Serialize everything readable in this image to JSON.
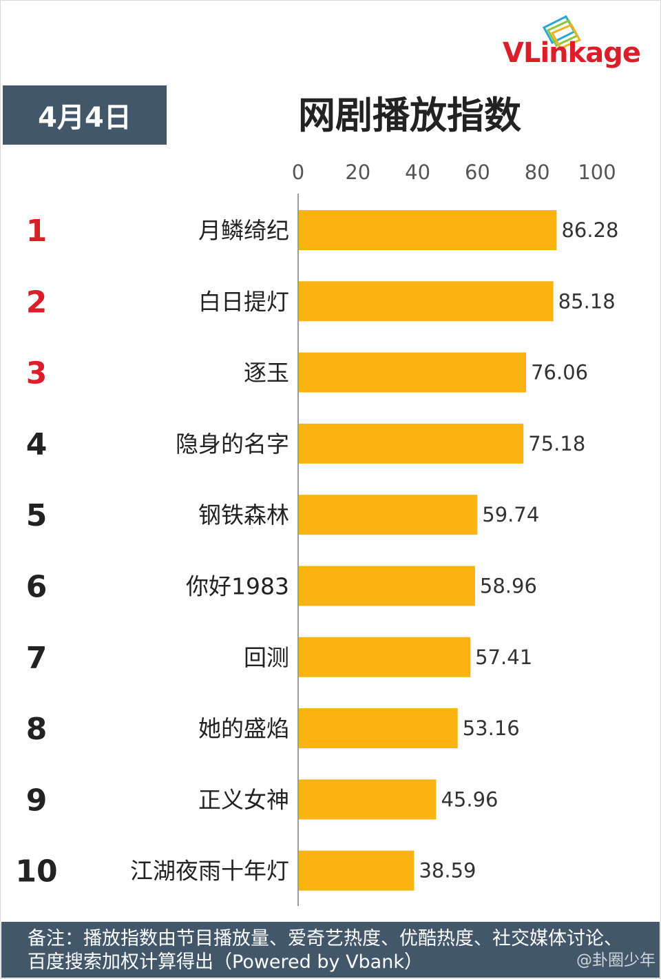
{
  "brand": {
    "logo_text": "VLinkage",
    "logo_color": "#d9202a"
  },
  "header": {
    "date": "4月4日",
    "title": "网剧播放指数"
  },
  "chart_data": {
    "type": "bar",
    "orientation": "horizontal",
    "title": "网剧播放指数",
    "xlim": [
      0,
      100
    ],
    "ticks": [
      "0",
      "20",
      "40",
      "60",
      "80",
      "100"
    ],
    "ranks": [
      "1",
      "2",
      "3",
      "4",
      "5",
      "6",
      "7",
      "8",
      "9",
      "10"
    ],
    "categories": [
      "月鳞绮纪",
      "白日提灯",
      "逐玉",
      "隐身的名字",
      "钢铁森林",
      "你好1983",
      "回测",
      "她的盛焰",
      "正义女神",
      "江湖夜雨十年灯"
    ],
    "values": [
      86.28,
      85.18,
      76.06,
      75.18,
      59.74,
      58.96,
      57.41,
      53.16,
      45.96,
      38.59
    ],
    "value_labels": [
      "86.28",
      "85.18",
      "76.06",
      "75.18",
      "59.74",
      "58.96",
      "57.41",
      "53.16",
      "45.96",
      "38.59"
    ],
    "bar_color": "#fbb314",
    "top_rank_color": "#d9202a",
    "rank_color": "#222222",
    "grid": false
  },
  "footer": {
    "note": "备注：播放指数由节目播放量、爱奇艺热度、优酷热度、社交媒体讨论、百度搜索加权计算得出（Powered by Vbank）",
    "watermark": "@卦圈少年"
  }
}
